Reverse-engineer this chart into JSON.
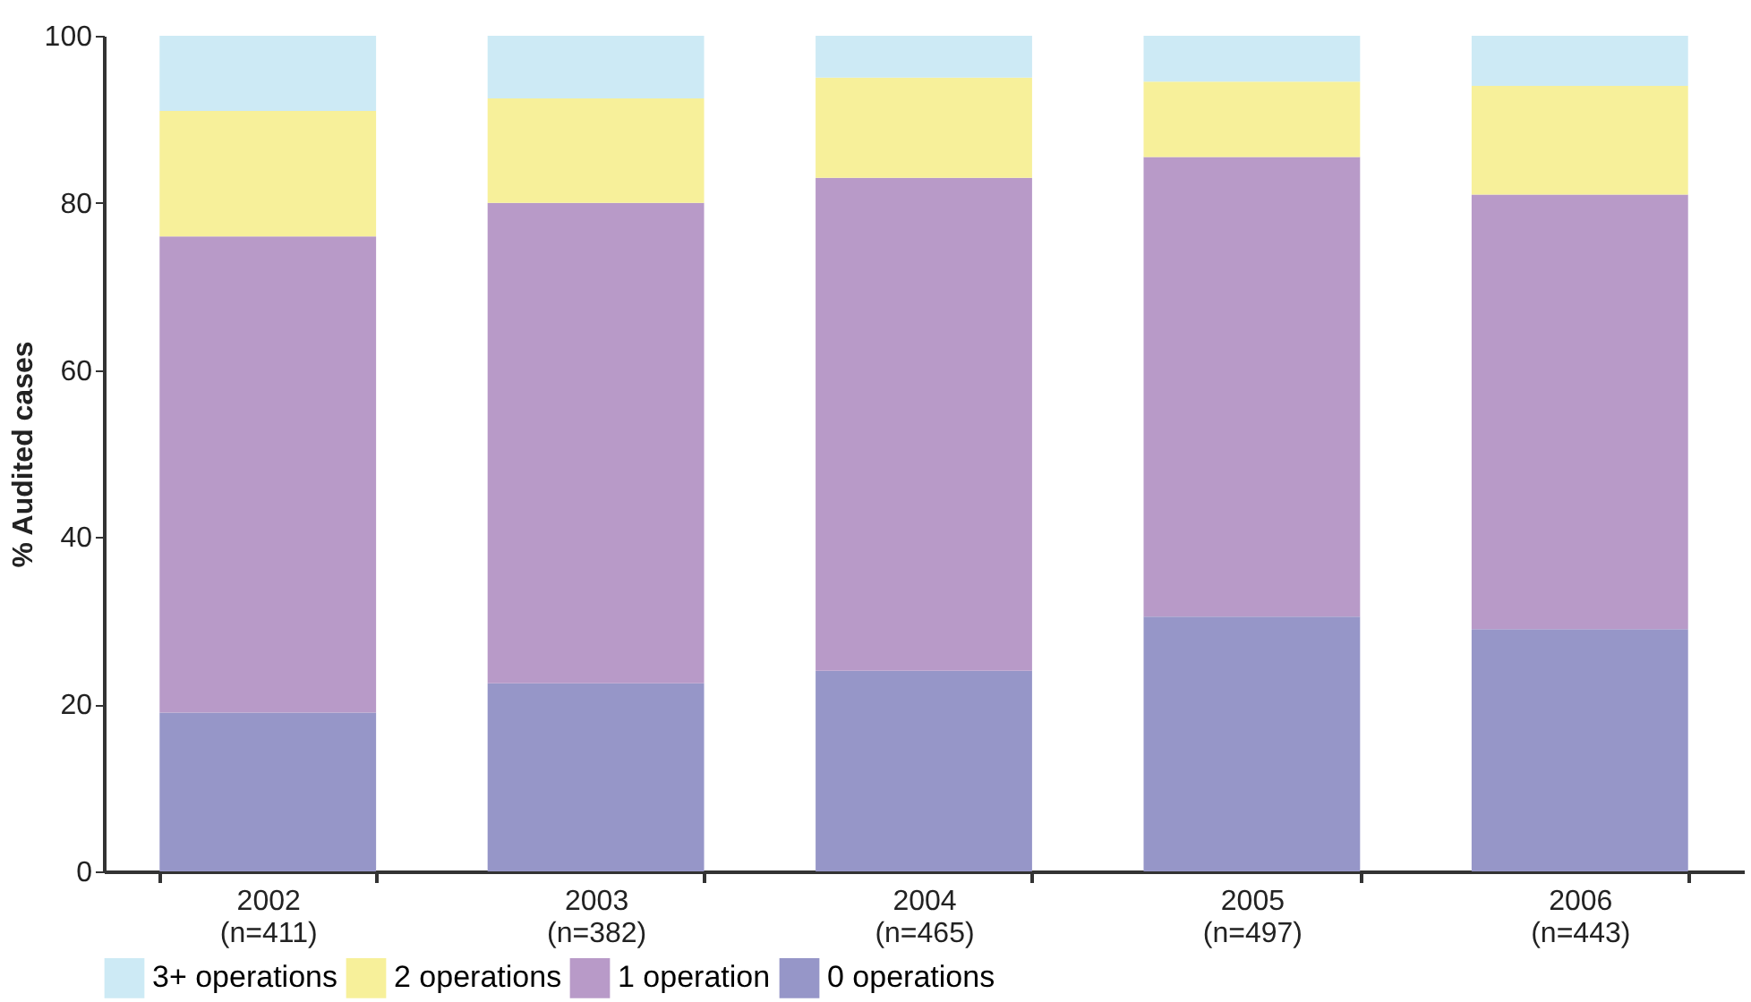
{
  "chart_data": {
    "type": "bar",
    "stacked": true,
    "ylabel": "% Audited cases",
    "categories": [
      "2002\n(n=411)",
      "2003\n(n=382)",
      "2004\n(n=465)",
      "2005\n(n=497)",
      "2006\n(n=443)"
    ],
    "series": [
      {
        "name": "0 operations",
        "color": "#9696c8",
        "values": [
          19,
          22.5,
          24,
          30.5,
          29
        ]
      },
      {
        "name": "1 operation",
        "color": "#b89ac8",
        "values": [
          57,
          57.5,
          59,
          55,
          52
        ]
      },
      {
        "name": "2 operations",
        "color": "#f7f09a",
        "values": [
          15,
          12.5,
          12,
          9,
          13
        ]
      },
      {
        "name": "3+ operations",
        "color": "#cdeaf5",
        "values": [
          9,
          7.5,
          5,
          5.5,
          6
        ]
      }
    ],
    "ylim": [
      0,
      100
    ],
    "yticks": [
      0,
      20,
      40,
      60,
      80,
      100
    ],
    "grid": false,
    "legend": "bottom"
  }
}
